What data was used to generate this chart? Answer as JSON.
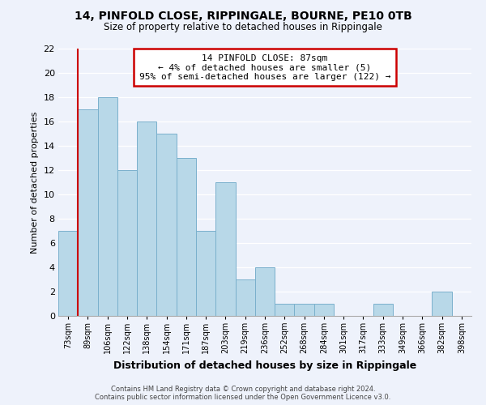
{
  "title": "14, PINFOLD CLOSE, RIPPINGALE, BOURNE, PE10 0TB",
  "subtitle": "Size of property relative to detached houses in Rippingale",
  "xlabel": "Distribution of detached houses by size in Rippingale",
  "ylabel": "Number of detached properties",
  "bin_labels": [
    "73sqm",
    "89sqm",
    "106sqm",
    "122sqm",
    "138sqm",
    "154sqm",
    "171sqm",
    "187sqm",
    "203sqm",
    "219sqm",
    "236sqm",
    "252sqm",
    "268sqm",
    "284sqm",
    "301sqm",
    "317sqm",
    "333sqm",
    "349sqm",
    "366sqm",
    "382sqm",
    "398sqm"
  ],
  "bar_heights": [
    7,
    17,
    18,
    12,
    16,
    15,
    13,
    7,
    11,
    3,
    4,
    1,
    1,
    1,
    0,
    0,
    1,
    0,
    0,
    2,
    0
  ],
  "bar_color": "#b8d8e8",
  "bar_edge_color": "#7ab0cc",
  "highlight_color": "#cc0000",
  "annotation_title": "14 PINFOLD CLOSE: 87sqm",
  "annotation_line1": "← 4% of detached houses are smaller (5)",
  "annotation_line2": "95% of semi-detached houses are larger (122) →",
  "annotation_box_color": "#ffffff",
  "annotation_border_color": "#cc0000",
  "ylim": [
    0,
    22
  ],
  "yticks": [
    0,
    2,
    4,
    6,
    8,
    10,
    12,
    14,
    16,
    18,
    20,
    22
  ],
  "footer_line1": "Contains HM Land Registry data © Crown copyright and database right 2024.",
  "footer_line2": "Contains public sector information licensed under the Open Government Licence v3.0.",
  "bg_color": "#eef2fb",
  "grid_color": "#ffffff",
  "title_fontsize": 10,
  "subtitle_fontsize": 8.5,
  "ylabel_fontsize": 8,
  "xlabel_fontsize": 9
}
